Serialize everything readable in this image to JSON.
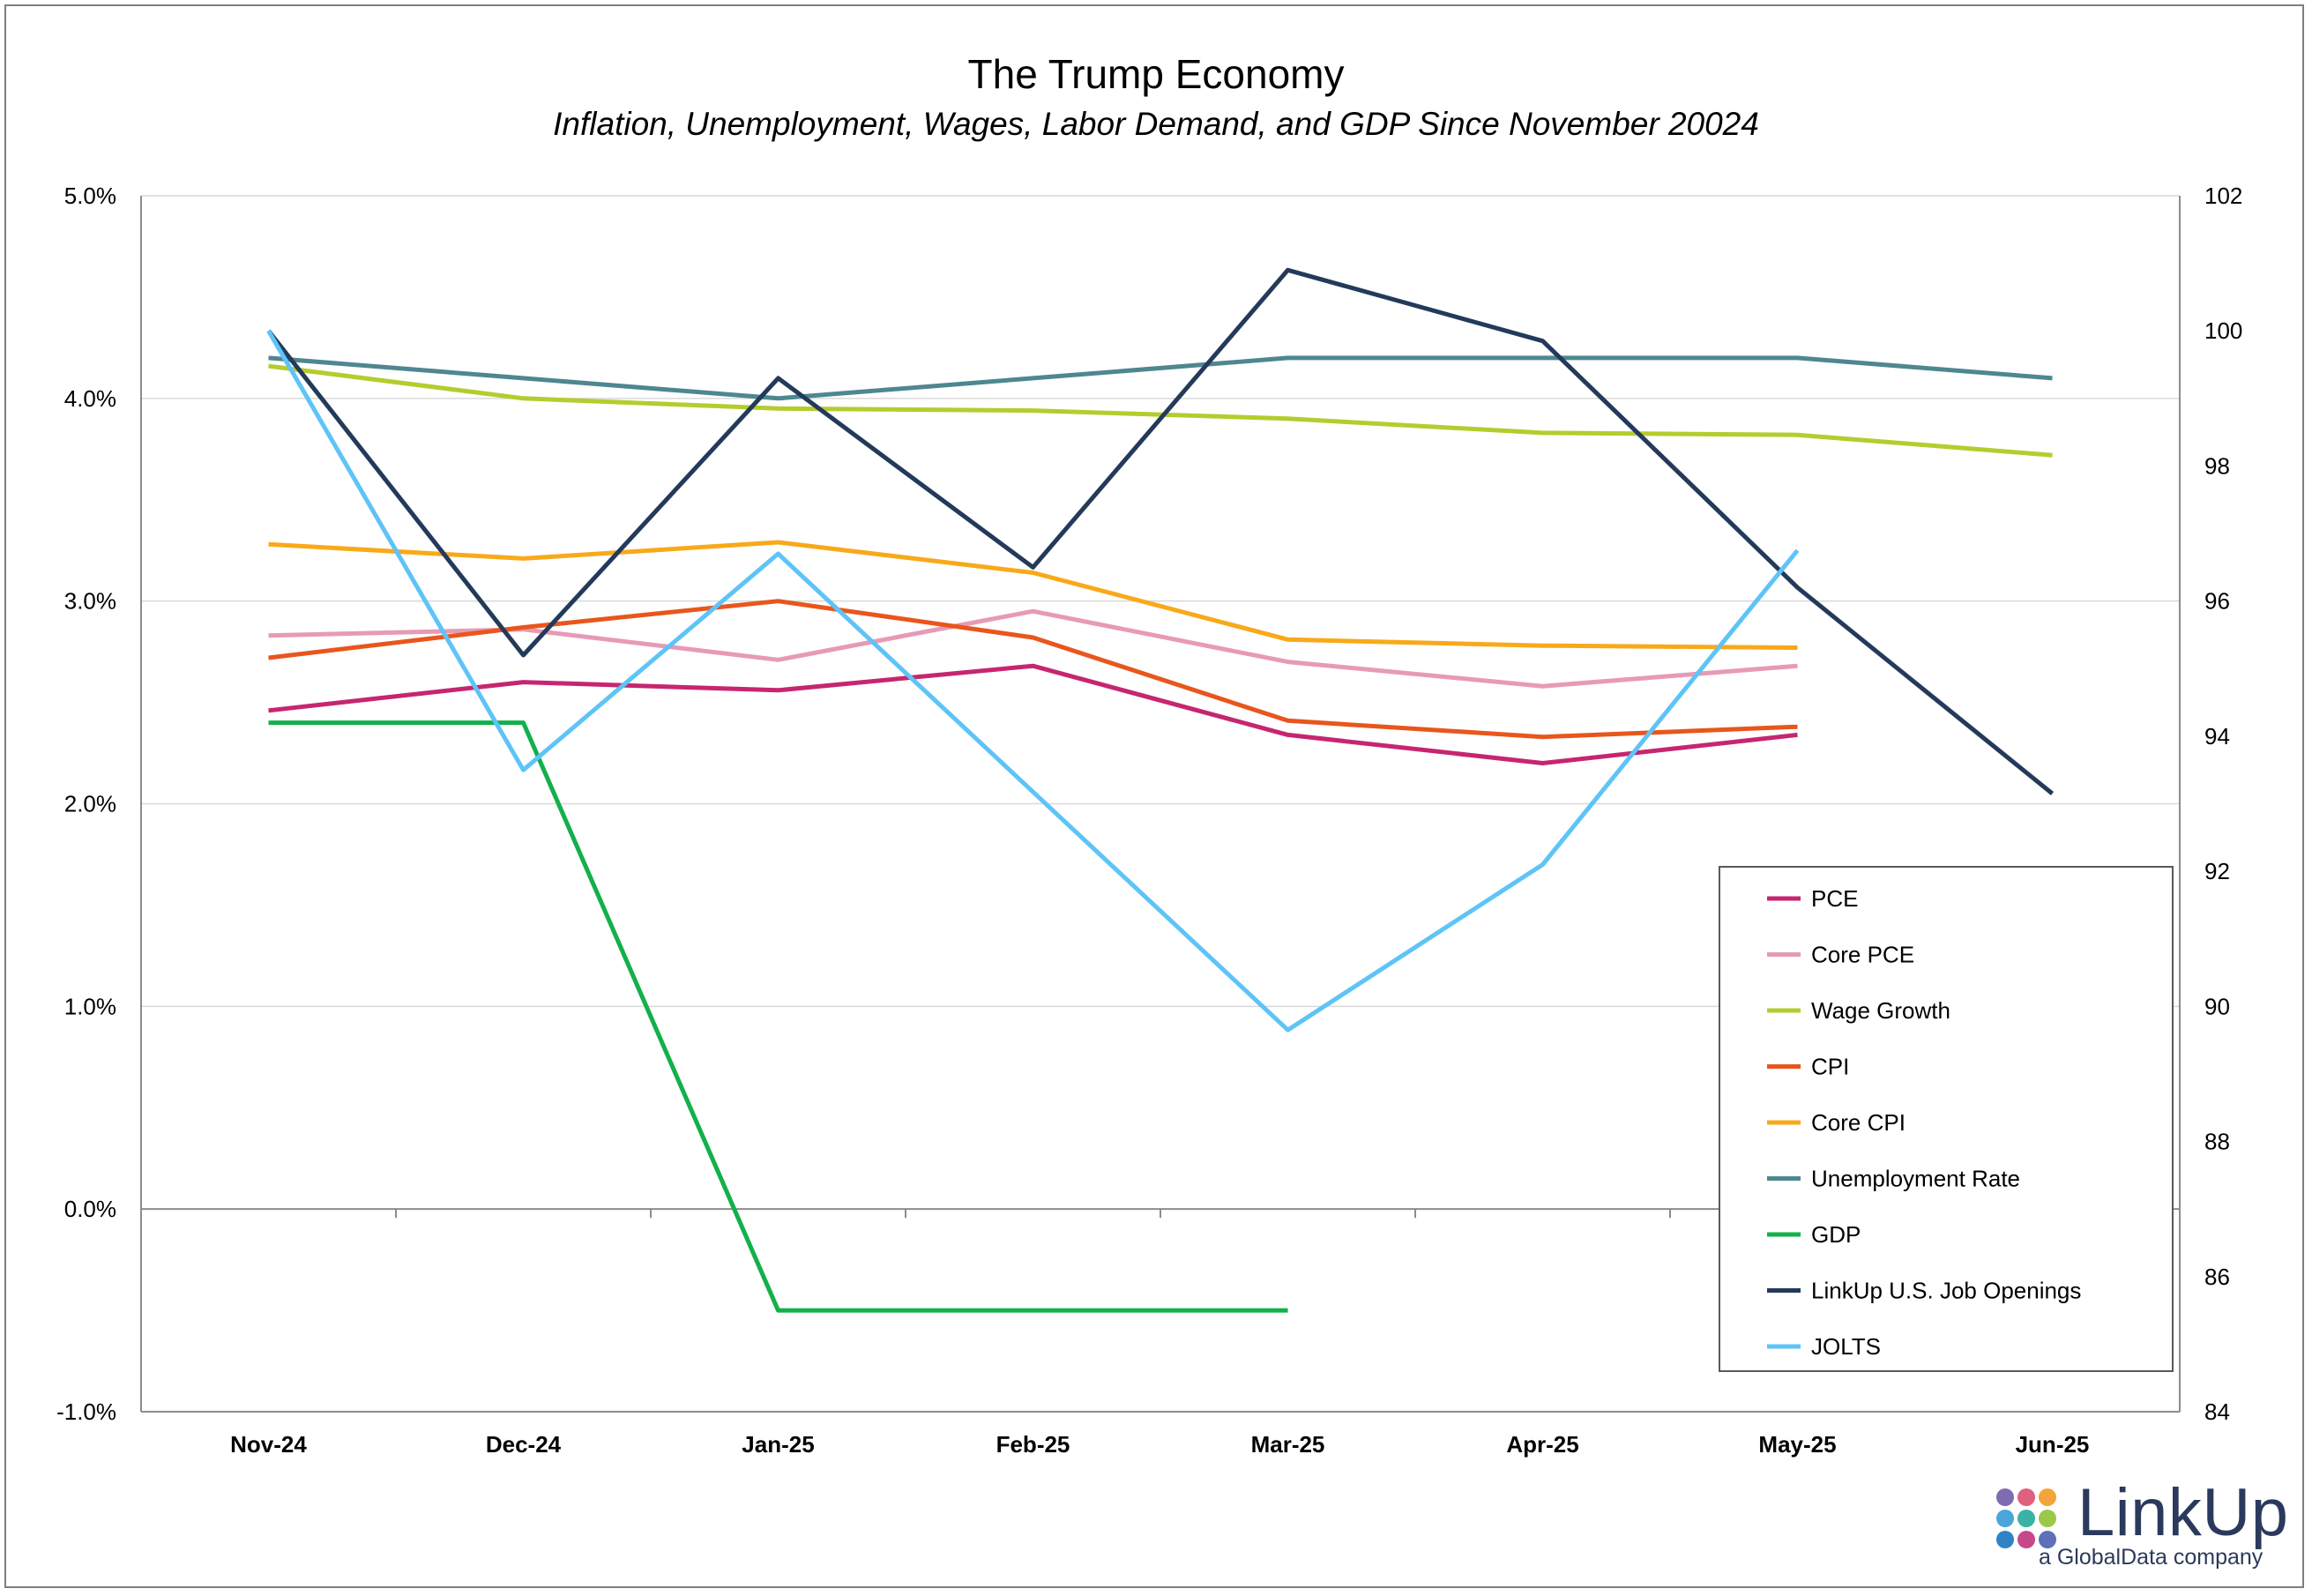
{
  "chart_data": {
    "type": "line",
    "title": "The Trump Economy",
    "subtitle": "Inflation, Unemployment, Wages, Labor Demand, and GDP Since November 20024",
    "categories": [
      "Nov-24",
      "Dec-24",
      "Jan-25",
      "Feb-25",
      "Mar-25",
      "Apr-25",
      "May-25",
      "Jun-25"
    ],
    "left_axis": {
      "ylim": [
        -1.0,
        5.0
      ],
      "ticks": [
        -1.0,
        0.0,
        1.0,
        2.0,
        3.0,
        4.0,
        5.0
      ],
      "tick_labels": [
        "-1.0%",
        "0.0%",
        "1.0%",
        "2.0%",
        "3.0%",
        "4.0%",
        "5.0%"
      ]
    },
    "right_axis": {
      "ylim": [
        84,
        102
      ],
      "ticks": [
        84,
        86,
        88,
        90,
        92,
        94,
        96,
        98,
        100,
        102
      ],
      "tick_labels": [
        "84",
        "86",
        "88",
        "90",
        "92",
        "94",
        "96",
        "98",
        "100",
        "102"
      ]
    },
    "grid": true,
    "legend_position": "bottom-right",
    "series": [
      {
        "name": "PCE",
        "axis": "left",
        "color": "#c6266f",
        "values": [
          2.46,
          2.6,
          2.56,
          2.68,
          2.34,
          2.2,
          2.34,
          null
        ]
      },
      {
        "name": "Core PCE",
        "axis": "left",
        "color": "#e79ab6",
        "values": [
          2.83,
          2.86,
          2.71,
          2.95,
          2.7,
          2.58,
          2.68,
          null
        ]
      },
      {
        "name": "Wage Growth",
        "axis": "left",
        "color": "#b5cc2e",
        "values": [
          4.16,
          4.0,
          3.95,
          3.94,
          3.9,
          3.83,
          3.82,
          3.72
        ]
      },
      {
        "name": "CPI",
        "axis": "left",
        "color": "#e8561d",
        "values": [
          2.72,
          2.87,
          3.0,
          2.82,
          2.41,
          2.33,
          2.38,
          null
        ]
      },
      {
        "name": "Core CPI",
        "axis": "left",
        "color": "#f8a91a",
        "values": [
          3.28,
          3.21,
          3.29,
          3.14,
          2.81,
          2.78,
          2.77,
          null
        ]
      },
      {
        "name": "Unemployment Rate",
        "axis": "left",
        "color": "#4e8790",
        "values": [
          4.2,
          4.1,
          4.0,
          4.1,
          4.2,
          4.2,
          4.2,
          4.1
        ]
      },
      {
        "name": "GDP",
        "axis": "left",
        "color": "#13b04b",
        "values": [
          2.4,
          2.4,
          -0.5,
          -0.5,
          -0.5,
          null,
          null,
          null
        ]
      },
      {
        "name": "LinkUp U.S. Job Openings",
        "axis": "right",
        "color": "#233a5a",
        "values": [
          100.0,
          95.2,
          99.3,
          96.5,
          100.9,
          99.85,
          96.2,
          93.15
        ]
      },
      {
        "name": "JOLTS",
        "axis": "right",
        "color": "#5ec4f7",
        "values": [
          100.0,
          93.5,
          96.7,
          null,
          89.65,
          92.1,
          96.75,
          null
        ]
      }
    ]
  },
  "logo": {
    "brand": "LinkUp",
    "tagline": "a GlobalData company",
    "dot_colors": [
      "#7e6bb0",
      "#e0607e",
      "#f3a43a",
      "#4aa6d8",
      "#3bb3a4",
      "#9cc84a",
      "#2f84c8",
      "#c7488a",
      "#5f6fb8"
    ]
  }
}
